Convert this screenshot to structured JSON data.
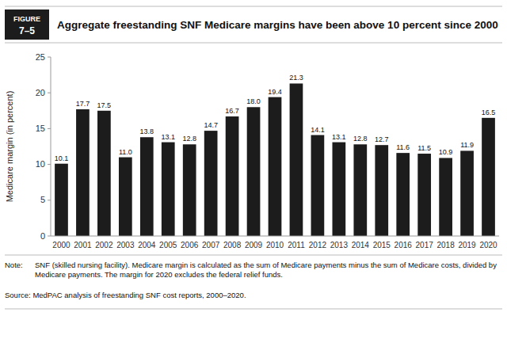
{
  "chart_data": {
    "type": "bar",
    "title": "Aggregate freestanding SNF Medicare margins have been above 10 percent since 2000",
    "ylabel": "Medicare margin (in percent)",
    "categories": [
      "2000",
      "2001",
      "2002",
      "2003",
      "2004",
      "2005",
      "2006",
      "2007",
      "2008",
      "2009",
      "2010",
      "2011",
      "2012",
      "2013",
      "2014",
      "2015",
      "2016",
      "2017",
      "2018",
      "2019",
      "2020"
    ],
    "values": [
      10.1,
      17.7,
      17.5,
      11.0,
      13.8,
      13.1,
      12.8,
      14.7,
      16.7,
      18.0,
      19.4,
      21.3,
      14.1,
      13.1,
      12.8,
      12.7,
      11.6,
      11.5,
      10.9,
      11.9,
      16.5
    ],
    "value_labels": [
      "10.1",
      "17.7",
      "17.5",
      "11.0",
      "13.8",
      "13.1",
      "12.8",
      "14.7",
      "16.7",
      "18.0",
      "19.4",
      "21.3",
      "14.1",
      "13.1",
      "12.8",
      "12.7",
      "11.6",
      "11.5",
      "10.9",
      "11.9",
      "16.5"
    ],
    "color": "#1c1c1c",
    "ylim": [
      0,
      25
    ],
    "yticks": [
      0,
      5,
      10,
      15,
      20,
      25
    ],
    "grid": false,
    "data_labels": true,
    "annotations": [
      "FIGURE",
      "7–5",
      "Note:",
      "SNF (skilled nursing facility). Medicare margin is calculated as the sum of Medicare payments minus the sum of Medicare costs, divided by\nMedicare payments. The margin for 2020 excludes the federal relief funds.",
      "Source: MedPAC analysis of freestanding SNF cost reports, 2000–2020."
    ]
  }
}
